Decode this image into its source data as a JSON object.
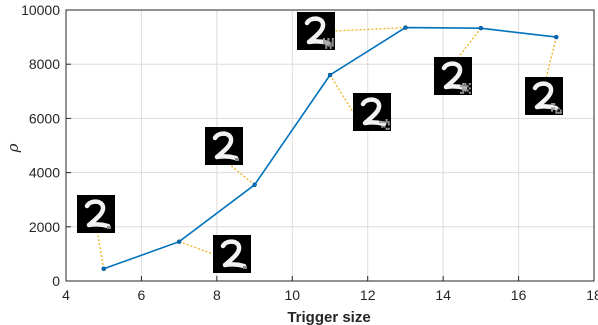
{
  "chart_data": {
    "type": "line",
    "title": "",
    "xlabel": "Trigger size",
    "ylabel": "ρ",
    "xlim": [
      4,
      18
    ],
    "ylim": [
      0,
      10000
    ],
    "x_ticks": [
      "4",
      "6",
      "8",
      "10",
      "12",
      "14",
      "16",
      "18"
    ],
    "y_ticks": [
      "0",
      "2000",
      "4000",
      "6000",
      "8000",
      "10000"
    ],
    "grid": true,
    "legend": "none",
    "series": [
      {
        "color": "#0072BD",
        "x": [
          5,
          7,
          9,
          11,
          13,
          15,
          17
        ],
        "y": [
          450,
          1450,
          3550,
          7600,
          9350,
          9330,
          9000
        ]
      }
    ],
    "annotations": {
      "type": "digit-2-thumbnail",
      "leader_color": "#EDB120",
      "points": [
        5,
        7,
        9,
        11,
        13,
        15,
        17
      ]
    }
  }
}
